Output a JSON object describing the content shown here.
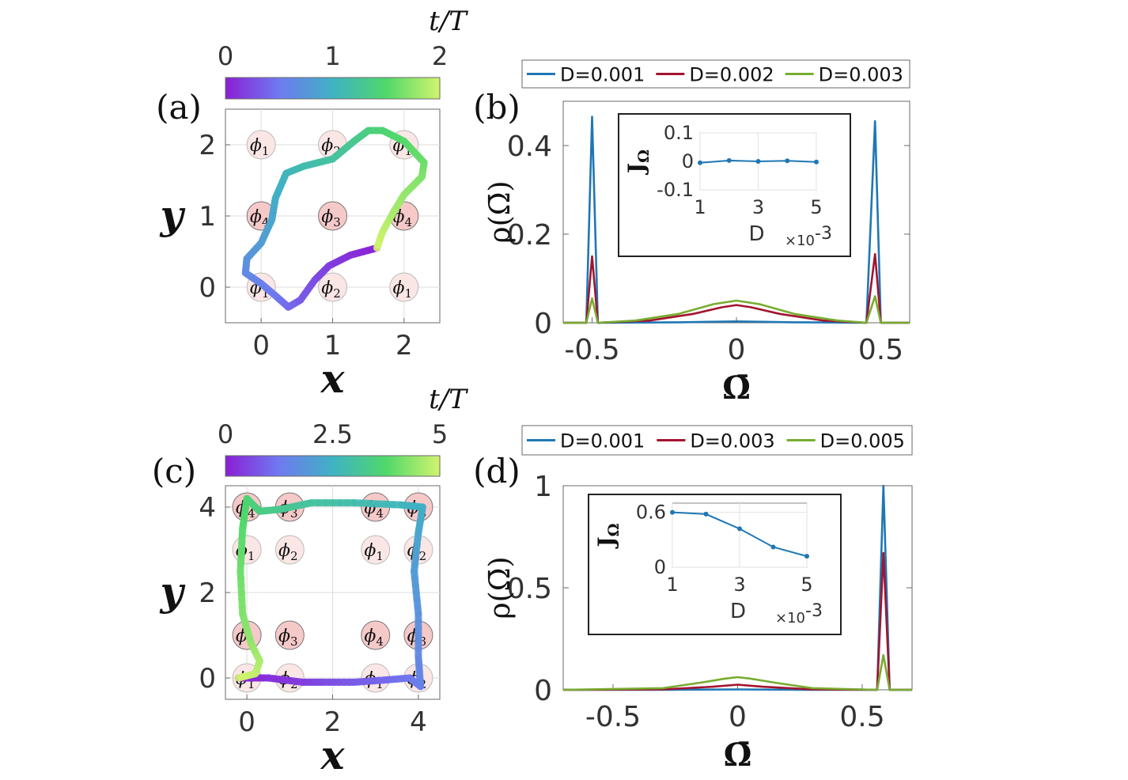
{
  "chart_data": [
    {
      "panel": "a",
      "type": "scatter",
      "panel_label": "(a)",
      "xlabel": "x",
      "ylabel": "y",
      "xlim": [
        -0.5,
        2.5
      ],
      "ylim": [
        -0.5,
        2.5
      ],
      "xticks": [
        "0",
        "1",
        "2"
      ],
      "yticks": [
        "0",
        "1",
        "2"
      ],
      "colorbar": {
        "label": "t/T",
        "ticks": [
          "0",
          "1",
          "2"
        ],
        "range": [
          0,
          2
        ]
      },
      "markers": [
        {
          "x": 0,
          "y": 0,
          "label": "ϕ",
          "sub": "1",
          "strong": false
        },
        {
          "x": 1,
          "y": 0,
          "label": "ϕ",
          "sub": "2",
          "strong": false
        },
        {
          "x": 2,
          "y": 0,
          "label": "ϕ",
          "sub": "1",
          "strong": false
        },
        {
          "x": 0,
          "y": 1,
          "label": "ϕ",
          "sub": "4",
          "strong": true
        },
        {
          "x": 1,
          "y": 1,
          "label": "ϕ",
          "sub": "3",
          "strong": true
        },
        {
          "x": 2,
          "y": 1,
          "label": "ϕ",
          "sub": "4",
          "strong": true
        },
        {
          "x": 0,
          "y": 2,
          "label": "ϕ",
          "sub": "1",
          "strong": false
        },
        {
          "x": 1,
          "y": 2,
          "label": "ϕ",
          "sub": "2",
          "strong": false
        },
        {
          "x": 2,
          "y": 2,
          "label": "ϕ",
          "sub": "1",
          "strong": false
        }
      ],
      "trajectory": [
        [
          1.62,
          0.55
        ],
        [
          1.25,
          0.45
        ],
        [
          0.95,
          0.3
        ],
        [
          0.75,
          0.1
        ],
        [
          0.55,
          -0.18
        ],
        [
          0.38,
          -0.28
        ],
        [
          0.2,
          -0.12
        ],
        [
          0.0,
          0.05
        ],
        [
          -0.22,
          0.2
        ],
        [
          -0.2,
          0.4
        ],
        [
          0.0,
          0.62
        ],
        [
          0.15,
          0.95
        ],
        [
          0.2,
          1.25
        ],
        [
          0.35,
          1.6
        ],
        [
          0.6,
          1.7
        ],
        [
          1.0,
          1.8
        ],
        [
          1.3,
          2.05
        ],
        [
          1.5,
          2.2
        ],
        [
          1.7,
          2.2
        ],
        [
          2.0,
          2.05
        ],
        [
          2.28,
          1.75
        ],
        [
          2.25,
          1.55
        ],
        [
          2.0,
          1.3
        ],
        [
          1.85,
          1.05
        ],
        [
          1.7,
          0.78
        ],
        [
          1.62,
          0.55
        ]
      ]
    },
    {
      "panel": "b",
      "type": "line",
      "panel_label": "(b)",
      "xlabel": "Ω̄",
      "ylabel": "ρ(Ω̄)",
      "xlim": [
        -0.6,
        0.6
      ],
      "ylim": [
        0,
        0.5
      ],
      "xticks": [
        "-0.5",
        "0",
        "0.5"
      ],
      "yticks": [
        "0",
        "0.2",
        "0.4"
      ],
      "series": [
        {
          "name": "D=0.001",
          "color": "#1f77b4",
          "points": [
            [
              -0.6,
              0
            ],
            [
              -0.52,
              0
            ],
            [
              -0.5,
              0.465
            ],
            [
              -0.48,
              0
            ],
            [
              -0.2,
              0.001
            ],
            [
              0,
              0.003
            ],
            [
              0.2,
              0.001
            ],
            [
              0.45,
              0
            ],
            [
              0.48,
              0.455
            ],
            [
              0.5,
              0
            ],
            [
              0.6,
              0
            ]
          ]
        },
        {
          "name": "D=0.002",
          "color": "#a2142f",
          "points": [
            [
              -0.6,
              0
            ],
            [
              -0.52,
              0
            ],
            [
              -0.5,
              0.15
            ],
            [
              -0.48,
              0
            ],
            [
              -0.3,
              0.005
            ],
            [
              -0.15,
              0.02
            ],
            [
              -0.05,
              0.035
            ],
            [
              0,
              0.04
            ],
            [
              0.05,
              0.035
            ],
            [
              0.15,
              0.02
            ],
            [
              0.3,
              0.005
            ],
            [
              0.45,
              0
            ],
            [
              0.48,
              0.155
            ],
            [
              0.5,
              0
            ],
            [
              0.6,
              0
            ]
          ]
        },
        {
          "name": "D=0.003",
          "color": "#77ac30",
          "points": [
            [
              -0.6,
              0
            ],
            [
              -0.52,
              0
            ],
            [
              -0.5,
              0.055
            ],
            [
              -0.48,
              0
            ],
            [
              -0.35,
              0.005
            ],
            [
              -0.2,
              0.02
            ],
            [
              -0.08,
              0.042
            ],
            [
              0,
              0.05
            ],
            [
              0.08,
              0.042
            ],
            [
              0.2,
              0.02
            ],
            [
              0.35,
              0.005
            ],
            [
              0.45,
              0
            ],
            [
              0.48,
              0.06
            ],
            [
              0.5,
              0
            ],
            [
              0.6,
              0
            ]
          ]
        }
      ],
      "inset": {
        "xlabel": "D",
        "ylabel": "J_Ω",
        "xlim": [
          1,
          5
        ],
        "ylim": [
          -0.1,
          0.1
        ],
        "xticks": [
          "1",
          "3",
          "5"
        ],
        "yticks": [
          "0.1",
          "0",
          "-0.1"
        ],
        "exponent": "×10",
        "exponent_power": "-3",
        "x": [
          1,
          2,
          3,
          4,
          5
        ],
        "y": [
          -0.005,
          0.003,
          0.0,
          0.002,
          -0.002
        ]
      }
    },
    {
      "panel": "c",
      "type": "scatter",
      "panel_label": "(c)",
      "xlabel": "x",
      "ylabel": "y",
      "xlim": [
        -0.5,
        4.5
      ],
      "ylim": [
        -0.5,
        4.5
      ],
      "xticks": [
        "0",
        "2",
        "4"
      ],
      "yticks": [
        "0",
        "2",
        "4"
      ],
      "colorbar": {
        "label": "t/T",
        "ticks": [
          "0",
          "2.5",
          "5"
        ],
        "range": [
          0,
          5
        ]
      },
      "markers": [
        {
          "x": 0,
          "y": 0,
          "label": "ϕ",
          "sub": "1",
          "strong": false
        },
        {
          "x": 1,
          "y": 0,
          "label": "ϕ",
          "sub": "2",
          "strong": false
        },
        {
          "x": 3,
          "y": 0,
          "label": "ϕ",
          "sub": "1",
          "strong": false
        },
        {
          "x": 4,
          "y": 0,
          "label": "ϕ",
          "sub": "2",
          "strong": false
        },
        {
          "x": 0,
          "y": 1,
          "label": "ϕ",
          "sub": "4",
          "strong": true
        },
        {
          "x": 1,
          "y": 1,
          "label": "ϕ",
          "sub": "3",
          "strong": true
        },
        {
          "x": 3,
          "y": 1,
          "label": "ϕ",
          "sub": "4",
          "strong": true
        },
        {
          "x": 4,
          "y": 1,
          "label": "ϕ",
          "sub": "3",
          "strong": true
        },
        {
          "x": 0,
          "y": 3,
          "label": "ϕ",
          "sub": "1",
          "strong": false
        },
        {
          "x": 1,
          "y": 3,
          "label": "ϕ",
          "sub": "2",
          "strong": false
        },
        {
          "x": 3,
          "y": 3,
          "label": "ϕ",
          "sub": "1",
          "strong": false
        },
        {
          "x": 4,
          "y": 3,
          "label": "ϕ",
          "sub": "2",
          "strong": false
        },
        {
          "x": 0,
          "y": 4,
          "label": "ϕ",
          "sub": "4",
          "strong": true
        },
        {
          "x": 1,
          "y": 4,
          "label": "ϕ",
          "sub": "3",
          "strong": true
        },
        {
          "x": 3,
          "y": 4,
          "label": "ϕ",
          "sub": "4",
          "strong": true
        },
        {
          "x": 4,
          "y": 4,
          "label": "ϕ",
          "sub": "3",
          "strong": true
        }
      ],
      "trajectory": [
        [
          -0.2,
          0.0
        ],
        [
          0.5,
          0.0
        ],
        [
          1.3,
          -0.1
        ],
        [
          1.8,
          -0.1
        ],
        [
          2.5,
          -0.1
        ],
        [
          3.2,
          -0.05
        ],
        [
          3.8,
          0.0
        ],
        [
          4.05,
          -0.2
        ],
        [
          4.0,
          0.5
        ],
        [
          4.0,
          1.5
        ],
        [
          3.9,
          2.5
        ],
        [
          4.0,
          3.4
        ],
        [
          4.1,
          4.0
        ],
        [
          3.6,
          4.05
        ],
        [
          2.5,
          4.1
        ],
        [
          1.5,
          4.1
        ],
        [
          0.8,
          3.95
        ],
        [
          0.3,
          3.9
        ],
        [
          0.0,
          4.2
        ],
        [
          -0.1,
          3.5
        ],
        [
          -0.15,
          2.5
        ],
        [
          -0.1,
          1.5
        ],
        [
          0.1,
          0.8
        ],
        [
          0.3,
          0.4
        ],
        [
          0.2,
          0.1
        ],
        [
          -0.2,
          0.0
        ]
      ]
    },
    {
      "panel": "d",
      "type": "line",
      "panel_label": "(d)",
      "xlabel": "Ω̄",
      "ylabel": "ρ(Ω̄)",
      "xlim": [
        -0.7,
        0.7
      ],
      "ylim": [
        0,
        1
      ],
      "xticks": [
        "-0.5",
        "0",
        "0.5"
      ],
      "yticks": [
        "0",
        "0.5",
        "1"
      ],
      "series": [
        {
          "name": "D=0.001",
          "color": "#1f77b4",
          "points": [
            [
              -0.7,
              0
            ],
            [
              -0.3,
              0
            ],
            [
              0,
              0.002
            ],
            [
              0.3,
              0
            ],
            [
              0.56,
              0
            ],
            [
              0.585,
              1.0
            ],
            [
              0.61,
              0
            ],
            [
              0.7,
              0
            ]
          ]
        },
        {
          "name": "D=0.003",
          "color": "#a2142f",
          "points": [
            [
              -0.7,
              0
            ],
            [
              -0.3,
              0.002
            ],
            [
              -0.1,
              0.015
            ],
            [
              0,
              0.025
            ],
            [
              0.1,
              0.015
            ],
            [
              0.3,
              0.002
            ],
            [
              0.56,
              0
            ],
            [
              0.585,
              0.67
            ],
            [
              0.61,
              0
            ],
            [
              0.7,
              0
            ]
          ]
        },
        {
          "name": "D=0.005",
          "color": "#77ac30",
          "points": [
            [
              -0.7,
              0
            ],
            [
              -0.3,
              0.008
            ],
            [
              -0.15,
              0.035
            ],
            [
              -0.05,
              0.055
            ],
            [
              0,
              0.062
            ],
            [
              0.05,
              0.055
            ],
            [
              0.15,
              0.035
            ],
            [
              0.3,
              0.008
            ],
            [
              0.56,
              0
            ],
            [
              0.585,
              0.17
            ],
            [
              0.61,
              0
            ],
            [
              0.7,
              0
            ]
          ]
        }
      ],
      "inset": {
        "xlabel": "D",
        "ylabel": "J_Ω",
        "xlim": [
          1,
          5
        ],
        "ylim": [
          0,
          0.7
        ],
        "xticks": [
          "1",
          "3",
          "5"
        ],
        "yticks": [
          "0.6",
          "0"
        ],
        "exponent": "×10",
        "exponent_power": "-3",
        "x": [
          1,
          2,
          3,
          4,
          5
        ],
        "y": [
          0.6,
          0.58,
          0.42,
          0.22,
          0.12
        ]
      }
    }
  ]
}
